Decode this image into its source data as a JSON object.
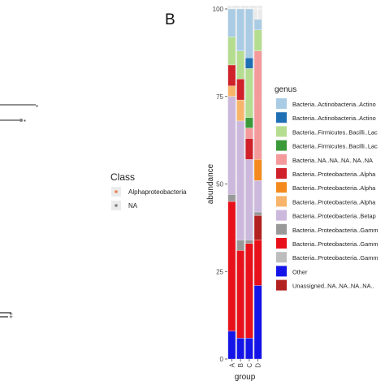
{
  "panel_label": "B",
  "left_legend": {
    "title": "Class",
    "items": [
      {
        "label": "Alphaproteobacteria",
        "color": "#f07f53"
      },
      {
        "label": "NA",
        "color": "#7f7f7f"
      }
    ]
  },
  "left_fragments": {
    "marker_a": "▪",
    "marker_b": "▪",
    "tick_partial": "‡"
  },
  "chart_data": {
    "type": "bar",
    "stacked": true,
    "categories": [
      "A",
      "B",
      "C",
      "D"
    ],
    "xlabel": "group",
    "ylabel": "abundance",
    "ylim": [
      0,
      100
    ],
    "yticks": [
      0,
      25,
      50,
      75,
      100
    ],
    "legend_title": "genus",
    "legend_position": "right",
    "grid": true,
    "series": [
      {
        "name": "Other",
        "color": "#1414e8",
        "values": [
          8,
          6,
          6,
          21
        ]
      },
      {
        "name": "Bacteria..Proteobacteria..Gamm",
        "color": "#e8101a",
        "values": [
          37,
          25,
          27,
          13
        ]
      },
      {
        "name": "Unassigned..NA..NA..NA..NA..",
        "color": "#b22020",
        "values": [
          0,
          0,
          0,
          7
        ]
      },
      {
        "name": "Bacteria..Proteobacteria..Gamm",
        "color": "#999999",
        "values": [
          2,
          3,
          1,
          1
        ]
      },
      {
        "name": "Bacteria..Proteobacteria..Betap",
        "color": "#cbb8dc",
        "values": [
          28,
          34,
          23,
          9
        ]
      },
      {
        "name": "Bacteria..Proteobacteria..Alpha",
        "color": "#f7b46a",
        "values": [
          3,
          6,
          0,
          0
        ]
      },
      {
        "name": "Bacteria..Proteobacteria..Alpha",
        "color": "#f48a1e",
        "values": [
          0,
          0,
          0,
          6
        ]
      },
      {
        "name": "Bacteria..Proteobacteria..Alpha",
        "color": "#d0202a",
        "values": [
          6,
          6,
          6,
          0
        ]
      },
      {
        "name": "Bacteria..NA..NA..NA..NA..NA",
        "color": "#f49a9a",
        "values": [
          0,
          0,
          3,
          31
        ]
      },
      {
        "name": "Bacteria..Firmicutes..Bacilli..Lac",
        "color": "#3a9a3a",
        "values": [
          0,
          0,
          3,
          0
        ]
      },
      {
        "name": "Bacteria..Firmicutes..Bacilli..Lac",
        "color": "#b5dd90",
        "values": [
          8,
          8,
          14,
          6
        ]
      },
      {
        "name": "Bacteria..Actinobacteria..Actino",
        "color": "#1f6fb4",
        "values": [
          0,
          0,
          3,
          0
        ]
      },
      {
        "name": "Bacteria..Actinobacteria..Actino",
        "color": "#a9cce4",
        "values": [
          8,
          12,
          14,
          3
        ]
      }
    ],
    "legend": [
      {
        "label": "Bacteria..Actinobacteria..Actino",
        "color": "#a9cce4"
      },
      {
        "label": "Bacteria..Actinobacteria..Actino",
        "color": "#1f6fb4"
      },
      {
        "label": "Bacteria..Firmicutes..Bacilli..Lac",
        "color": "#b5dd90"
      },
      {
        "label": "Bacteria..Firmicutes..Bacilli..Lac",
        "color": "#3a9a3a"
      },
      {
        "label": "Bacteria..NA..NA..NA..NA..NA",
        "color": "#f49a9a"
      },
      {
        "label": "Bacteria..Proteobacteria..Alpha",
        "color": "#d0202a"
      },
      {
        "label": "Bacteria..Proteobacteria..Alpha",
        "color": "#f48a1e"
      },
      {
        "label": "Bacteria..Proteobacteria..Alpha",
        "color": "#f7b46a"
      },
      {
        "label": "Bacteria..Proteobacteria..Betap",
        "color": "#cbb8dc"
      },
      {
        "label": "Bacteria..Proteobacteria..Gamm",
        "color": "#999999"
      },
      {
        "label": "Bacteria..Proteobacteria..Gamm",
        "color": "#e8101a"
      },
      {
        "label": "Bacteria..Proteobacteria..Gamm",
        "color": "#bdbdbd"
      },
      {
        "label": "Other",
        "color": "#1414e8"
      },
      {
        "label": "Unassigned..NA..NA..NA..NA..",
        "color": "#b22020"
      }
    ]
  }
}
